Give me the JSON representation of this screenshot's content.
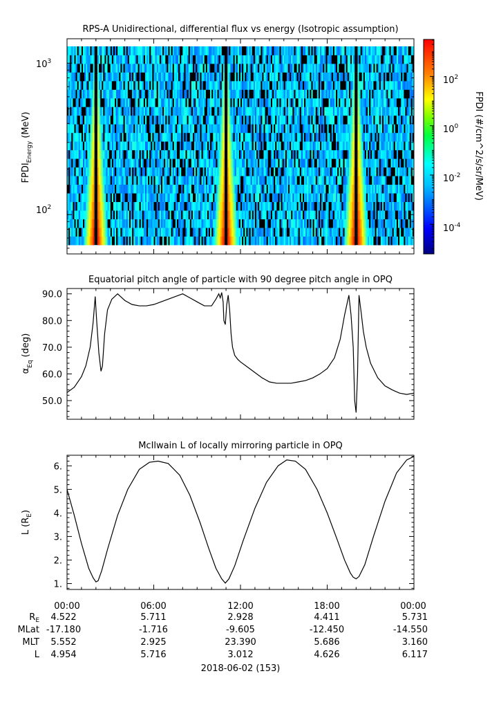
{
  "chart_data": [
    {
      "type": "heatmap",
      "title": "RPS-A Unidirectional, differential flux vs energy (Isotropic assumption)",
      "ylabel": "FPDI",
      "ylabel_sub": "Energy",
      "ylabel_units": "(MeV)",
      "yscale": "log",
      "ylim": [
        55,
        1450
      ],
      "yticks": [
        {
          "value": 100,
          "base": "10",
          "exp": "2"
        },
        {
          "value": 1000,
          "base": "10",
          "exp": "3"
        }
      ],
      "xlim_hours": [
        0,
        24
      ],
      "colorbar": {
        "label": "FPDI (#/cm^2/s/sr/MeV)",
        "scale": "log",
        "range_log10": [
          -5.2,
          3.5
        ],
        "ticks": [
          {
            "value": -4,
            "base": "10",
            "exp": "-4"
          },
          {
            "value": -2,
            "base": "10",
            "exp": "-2"
          },
          {
            "value": 0,
            "base": "10",
            "exp": "0"
          },
          {
            "value": 2,
            "base": "10",
            "exp": "2"
          }
        ]
      },
      "peaks_hours": [
        2.0,
        11.0,
        20.0
      ],
      "energy_bins": 23,
      "time_bins": 240
    },
    {
      "type": "line",
      "title": "Equatorial pitch angle of particle with 90 degree pitch angle in OPQ",
      "ylabel": "α",
      "ylabel_sub": "Eq",
      "ylabel_units": "(deg)",
      "ylim": [
        43,
        92
      ],
      "yticks": [
        50.0,
        60.0,
        70.0,
        80.0,
        90.0
      ],
      "ytick_labels": [
        "50.0",
        "60.0",
        "70.0",
        "80.0",
        "90.0"
      ],
      "series": [
        {
          "x": [
            0.0,
            0.5,
            1.0,
            1.3,
            1.6,
            1.8,
            1.95,
            2.05,
            2.2,
            2.35,
            2.45,
            2.6,
            2.8,
            3.1,
            3.5,
            3.7,
            4.0,
            4.5,
            5.0,
            5.5,
            6.0,
            6.5,
            7.0,
            7.5,
            8.0,
            8.5,
            9.0,
            9.5,
            10.0,
            10.3,
            10.5,
            10.6,
            10.7,
            10.8,
            10.85,
            10.95,
            11.05,
            11.15,
            11.25,
            11.35,
            11.45,
            11.6,
            11.8,
            12.0,
            12.5,
            13.0,
            13.5,
            14.0,
            14.5,
            15.0,
            15.5,
            16.0,
            16.5,
            17.0,
            17.5,
            18.0,
            18.5,
            18.9,
            19.2,
            19.5,
            19.65,
            19.8,
            19.9,
            20.0,
            20.1,
            20.2,
            20.35,
            20.5,
            20.7,
            21.0,
            21.5,
            22.0,
            22.5,
            23.0,
            23.5,
            24.0
          ],
          "y": [
            53.0,
            55.0,
            59.0,
            63.0,
            70.0,
            79.0,
            89.0,
            80.0,
            68.0,
            61.0,
            63.0,
            75.0,
            84.0,
            88.0,
            90.0,
            89.0,
            87.5,
            86.0,
            85.5,
            85.5,
            86.0,
            87.0,
            88.0,
            89.0,
            90.0,
            88.5,
            87.0,
            85.5,
            85.5,
            88.0,
            90.0,
            88.5,
            90.5,
            87.0,
            80.0,
            78.5,
            86.0,
            89.5,
            84.0,
            75.0,
            70.0,
            67.0,
            65.5,
            64.5,
            62.5,
            60.5,
            58.5,
            57.0,
            56.5,
            56.5,
            56.5,
            57.0,
            57.5,
            58.5,
            60.0,
            62.0,
            66.0,
            73.0,
            82.0,
            89.5,
            82.0,
            70.0,
            50.0,
            45.5,
            60.0,
            89.5,
            83.0,
            76.0,
            70.0,
            64.0,
            58.5,
            55.5,
            54.0,
            52.8,
            52.3,
            52.8
          ]
        }
      ]
    },
    {
      "type": "line",
      "title": "McIlwain L of locally mirroring particle in OPQ",
      "ylabel": "L",
      "ylabel_units_pre": "(R",
      "ylabel_units_sub": "E",
      "ylabel_units_post": ")",
      "ylim": [
        0.75,
        6.45
      ],
      "yticks": [
        1.0,
        2.0,
        3.0,
        4.0,
        5.0,
        6.0
      ],
      "ytick_labels": [
        "1.",
        "2.",
        "3.",
        "4.",
        "5.",
        "6."
      ],
      "series": [
        {
          "x": [
            0.0,
            0.5,
            1.0,
            1.5,
            1.8,
            2.0,
            2.15,
            2.4,
            2.8,
            3.5,
            4.2,
            5.0,
            5.7,
            6.3,
            7.0,
            7.8,
            8.5,
            9.2,
            9.8,
            10.3,
            10.7,
            10.95,
            11.2,
            11.6,
            12.2,
            13.0,
            13.8,
            14.6,
            15.2,
            15.8,
            16.5,
            17.3,
            18.0,
            18.7,
            19.2,
            19.6,
            19.8,
            20.0,
            20.2,
            20.6,
            21.2,
            22.0,
            22.8,
            23.5,
            24.0
          ],
          "y": [
            5.0,
            3.9,
            2.7,
            1.65,
            1.25,
            1.07,
            1.12,
            1.55,
            2.45,
            3.9,
            5.0,
            5.85,
            6.15,
            6.2,
            6.1,
            5.6,
            4.75,
            3.6,
            2.5,
            1.65,
            1.2,
            1.02,
            1.2,
            1.75,
            2.85,
            4.2,
            5.3,
            6.0,
            6.25,
            6.2,
            5.85,
            5.0,
            4.0,
            2.85,
            2.0,
            1.45,
            1.27,
            1.2,
            1.3,
            1.8,
            3.0,
            4.5,
            5.7,
            6.25,
            6.4
          ]
        }
      ]
    }
  ],
  "ephemeris": {
    "time_labels": [
      "00:00",
      "06:00",
      "12:00",
      "18:00",
      "00:00"
    ],
    "rows": [
      {
        "label": "R",
        "label_sub": "E",
        "values": [
          "4.522",
          "5.711",
          "2.928",
          "4.411",
          "5.731"
        ]
      },
      {
        "label": "MLat",
        "label_sub": "",
        "values": [
          "-17.180",
          "-1.716",
          "-9.605",
          "-12.450",
          "-14.550"
        ]
      },
      {
        "label": "MLT",
        "label_sub": "",
        "values": [
          "5.552",
          "2.925",
          "23.390",
          "5.686",
          "3.160"
        ]
      },
      {
        "label": "L",
        "label_sub": "",
        "values": [
          "4.954",
          "5.716",
          "3.012",
          "4.626",
          "6.117"
        ]
      }
    ],
    "date": "2018-06-02 (153)"
  }
}
